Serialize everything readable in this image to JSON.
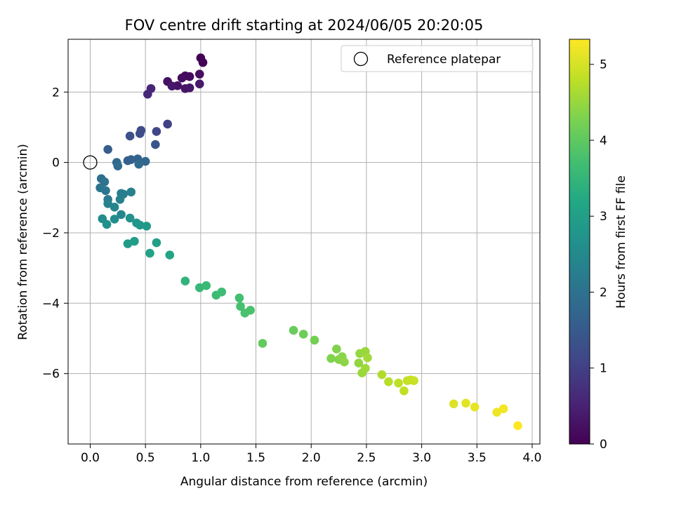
{
  "chart_data": {
    "type": "scatter",
    "title": "FOV centre drift starting at 2024/06/05 20:20:05",
    "xlabel": "Angular distance from reference (arcmin)",
    "ylabel": "Rotation from reference (arcmin)",
    "xlim": [
      -0.2,
      4.07
    ],
    "ylim": [
      -8.0,
      3.5
    ],
    "xticks": [
      "0.0",
      "0.5",
      "1.0",
      "1.5",
      "2.0",
      "2.5",
      "3.0",
      "3.5",
      "4.0"
    ],
    "yticks": [
      "−6",
      "−4",
      "−2",
      "0",
      "2"
    ],
    "grid": true,
    "legend": {
      "location": "upper right",
      "entries": [
        "Reference platepar"
      ]
    },
    "colorbar": {
      "label": "Hours from first FF file",
      "range": [
        0,
        5.33
      ],
      "ticks": [
        "0",
        "1",
        "2",
        "3",
        "4",
        "5"
      ],
      "colormap": "viridis"
    },
    "reference_point": [
      0.0,
      0.0
    ],
    "series": [
      {
        "points": [
          [
            1.0,
            2.97,
            0.0
          ],
          [
            1.02,
            2.84,
            0.05
          ],
          [
            0.86,
            2.46,
            0.12
          ],
          [
            0.9,
            2.44,
            0.15
          ],
          [
            0.83,
            2.4,
            0.17
          ],
          [
            0.99,
            2.51,
            0.2
          ],
          [
            0.7,
            2.3,
            0.25
          ],
          [
            0.79,
            2.18,
            0.28
          ],
          [
            0.86,
            2.1,
            0.3
          ],
          [
            0.9,
            2.12,
            0.33
          ],
          [
            0.74,
            2.17,
            0.35
          ],
          [
            0.99,
            2.23,
            0.38
          ],
          [
            0.55,
            2.1,
            0.55
          ],
          [
            0.52,
            1.94,
            0.6
          ],
          [
            0.7,
            1.09,
            1.0
          ],
          [
            0.6,
            0.88,
            1.1
          ],
          [
            0.46,
            0.91,
            1.2
          ],
          [
            0.45,
            0.82,
            1.25
          ],
          [
            0.36,
            0.75,
            1.3
          ],
          [
            0.59,
            0.51,
            1.4
          ],
          [
            0.16,
            0.37,
            1.55
          ],
          [
            0.34,
            0.05,
            1.62
          ],
          [
            0.37,
            0.08,
            1.65
          ],
          [
            0.43,
            0.1,
            1.7
          ],
          [
            0.5,
            0.03,
            1.75
          ],
          [
            0.24,
            0.0,
            1.8
          ],
          [
            0.44,
            -0.05,
            1.85
          ],
          [
            0.25,
            -0.1,
            1.88
          ],
          [
            0.1,
            -0.46,
            1.95
          ],
          [
            0.13,
            -0.55,
            2.0
          ],
          [
            0.09,
            -0.72,
            2.05
          ],
          [
            0.14,
            -0.8,
            2.1
          ],
          [
            0.16,
            -1.05,
            2.15
          ],
          [
            0.28,
            -0.88,
            2.2
          ],
          [
            0.3,
            -0.9,
            2.25
          ],
          [
            0.37,
            -0.84,
            2.28
          ],
          [
            0.27,
            -1.05,
            2.32
          ],
          [
            0.16,
            -1.17,
            2.35
          ],
          [
            0.22,
            -1.27,
            2.4
          ],
          [
            0.28,
            -1.48,
            2.45
          ],
          [
            0.11,
            -1.6,
            2.55
          ],
          [
            0.22,
            -1.61,
            2.6
          ],
          [
            0.15,
            -1.76,
            2.65
          ],
          [
            0.36,
            -1.58,
            2.7
          ],
          [
            0.42,
            -1.72,
            2.75
          ],
          [
            0.45,
            -1.78,
            2.8
          ],
          [
            0.51,
            -1.81,
            2.85
          ],
          [
            0.34,
            -2.31,
            2.9
          ],
          [
            0.4,
            -2.24,
            2.95
          ],
          [
            0.6,
            -2.28,
            3.0
          ],
          [
            0.54,
            -2.58,
            3.05
          ],
          [
            0.72,
            -2.63,
            3.1
          ],
          [
            0.86,
            -3.37,
            3.45
          ],
          [
            0.99,
            -3.56,
            3.55
          ],
          [
            1.05,
            -3.5,
            3.58
          ],
          [
            1.14,
            -3.77,
            3.62
          ],
          [
            1.19,
            -3.68,
            3.65
          ],
          [
            1.35,
            -3.85,
            3.7
          ],
          [
            1.36,
            -4.09,
            3.75
          ],
          [
            1.4,
            -4.28,
            3.78
          ],
          [
            1.45,
            -4.2,
            3.8
          ],
          [
            1.56,
            -5.14,
            4.05
          ],
          [
            1.84,
            -4.77,
            4.1
          ],
          [
            1.93,
            -4.88,
            4.15
          ],
          [
            2.03,
            -5.05,
            4.2
          ],
          [
            2.18,
            -5.57,
            4.3
          ],
          [
            2.23,
            -5.3,
            4.32
          ],
          [
            2.25,
            -5.6,
            4.35
          ],
          [
            2.28,
            -5.52,
            4.38
          ],
          [
            2.3,
            -5.67,
            4.4
          ],
          [
            2.43,
            -5.7,
            4.45
          ],
          [
            2.44,
            -5.43,
            4.48
          ],
          [
            2.49,
            -5.37,
            4.5
          ],
          [
            2.46,
            -5.98,
            4.53
          ],
          [
            2.49,
            -5.85,
            4.55
          ],
          [
            2.51,
            -5.55,
            4.58
          ],
          [
            2.64,
            -6.03,
            4.7
          ],
          [
            2.7,
            -6.23,
            4.75
          ],
          [
            2.79,
            -6.27,
            4.8
          ],
          [
            2.84,
            -6.49,
            4.83
          ],
          [
            2.87,
            -6.2,
            4.85
          ],
          [
            2.9,
            -6.18,
            4.88
          ],
          [
            2.93,
            -6.2,
            4.9
          ],
          [
            3.29,
            -6.86,
            5.05
          ],
          [
            3.4,
            -6.84,
            5.1
          ],
          [
            3.48,
            -6.95,
            5.15
          ],
          [
            3.68,
            -7.1,
            5.22
          ],
          [
            3.74,
            -7.0,
            5.25
          ],
          [
            3.87,
            -7.48,
            5.33
          ]
        ]
      }
    ]
  }
}
